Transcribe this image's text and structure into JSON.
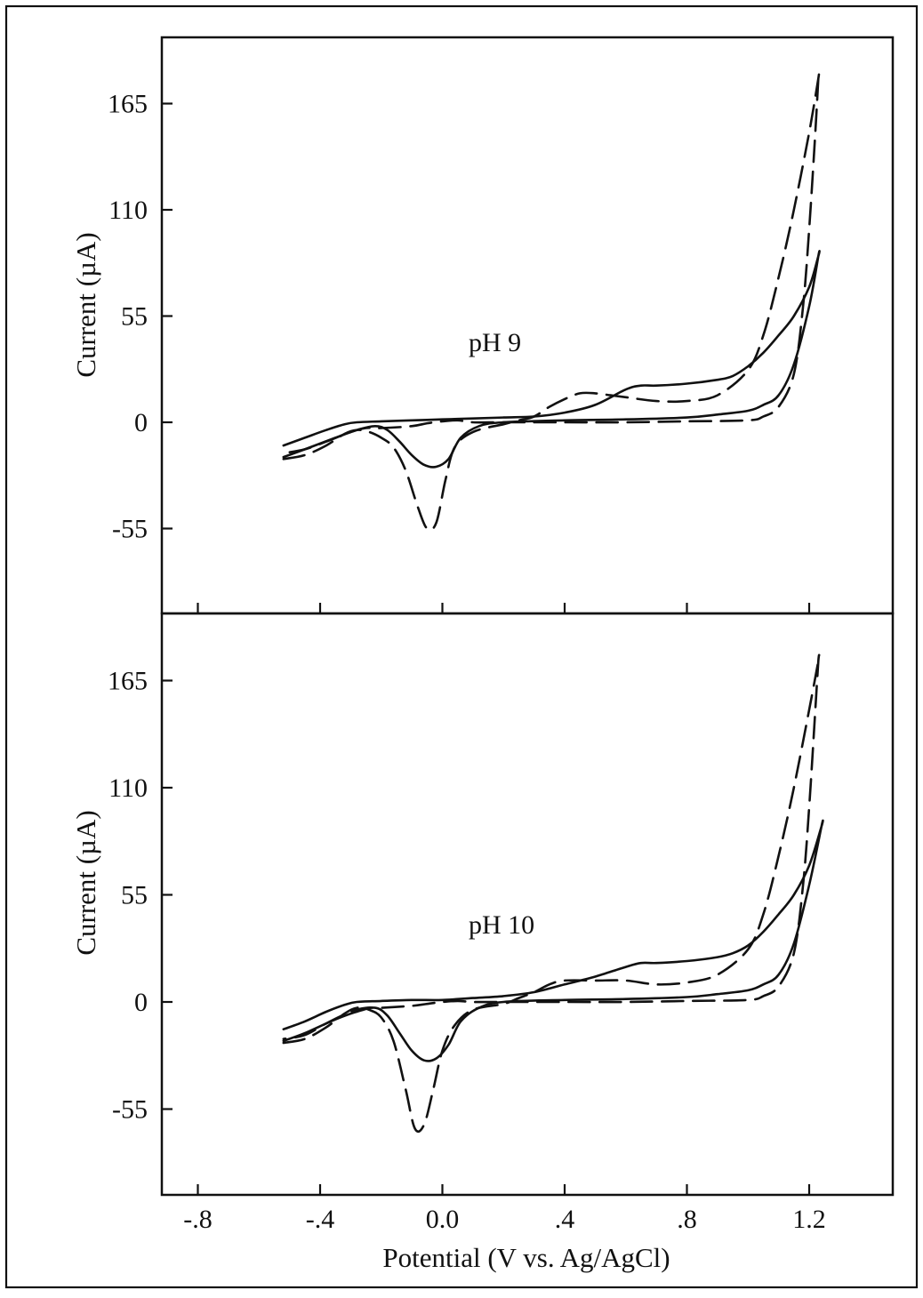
{
  "colors": {
    "line": "#111111",
    "background": "#ffffff"
  },
  "chart_data": [
    {
      "type": "line",
      "panel_label": "pH 9",
      "ylabel": "Current (µA)",
      "xlabel": "",
      "xlim": [
        -0.9,
        1.45
      ],
      "ylim": [
        -98,
        200
      ],
      "yticks": [
        -55,
        0,
        55,
        110,
        165
      ],
      "ytick_labels": [
        "-55",
        "0",
        "55",
        "110",
        "165"
      ],
      "xticks": [
        -0.8,
        -0.4,
        0.0,
        0.4,
        0.8,
        1.2
      ],
      "xtick_labels": [],
      "grid": false,
      "series": [
        {
          "style": "solid",
          "x": [
            -0.52,
            -0.45,
            -0.38,
            -0.32,
            -0.28,
            -0.2,
            -0.1,
            0.0,
            0.1,
            0.2,
            0.3,
            0.4,
            0.5,
            0.6,
            0.65,
            0.7,
            0.8,
            0.9,
            0.95,
            1.0,
            1.05,
            1.1,
            1.15,
            1.2,
            1.23,
            1.23,
            1.2,
            1.15,
            1.1,
            1.05,
            1.0,
            0.9,
            0.8,
            0.6,
            0.4,
            0.2,
            0.12,
            0.06,
            0.02,
            -0.02,
            -0.06,
            -0.1,
            -0.14,
            -0.18,
            -0.22,
            -0.28,
            -0.35,
            -0.45,
            -0.52
          ],
          "y": [
            -12,
            -8,
            -4,
            -1,
            0,
            0.5,
            1,
            1.5,
            2,
            2.5,
            3,
            5,
            9,
            17,
            19,
            19,
            20,
            22,
            24,
            29,
            36,
            45,
            55,
            70,
            86,
            86,
            60,
            30,
            14,
            9,
            6,
            4,
            2.5,
            1.5,
            1,
            0,
            -2,
            -8,
            -19,
            -23,
            -22,
            -17,
            -10,
            -4,
            -2,
            -4,
            -8,
            -14,
            -18
          ]
        },
        {
          "style": "dashed",
          "x": [
            -0.52,
            -0.45,
            -0.38,
            -0.32,
            -0.28,
            -0.24,
            -0.2,
            -0.16,
            -0.12,
            -0.08,
            -0.05,
            -0.02,
            0.01,
            0.04,
            0.1,
            0.2,
            0.25,
            0.3,
            0.35,
            0.4,
            0.45,
            0.5,
            0.55,
            0.6,
            0.7,
            0.8,
            0.9,
            1.0,
            1.05,
            1.1,
            1.15,
            1.2,
            1.23,
            1.23,
            1.22,
            1.2,
            1.18,
            1.15,
            1.1,
            1.05,
            1.0,
            0.8,
            0.6,
            0.4,
            0.2,
            0.1,
            0.05,
            0.0,
            -0.05,
            -0.1,
            -0.2,
            -0.25,
            -0.3,
            -0.38,
            -0.45,
            -0.52
          ],
          "y": [
            -19,
            -17,
            -12,
            -6,
            -4,
            -5,
            -8,
            -13,
            -25,
            -44,
            -55,
            -52,
            -30,
            -13,
            -5,
            -1,
            1,
            3,
            8,
            12,
            15,
            15,
            14,
            13,
            11,
            11,
            14,
            27,
            45,
            75,
            110,
            150,
            178,
            178,
            150,
            100,
            60,
            25,
            8,
            3,
            1,
            0.5,
            0,
            0,
            0,
            0,
            1,
            0.5,
            -0.5,
            -2,
            -3,
            -3,
            -5,
            -10,
            -14,
            -16
          ]
        }
      ]
    },
    {
      "type": "line",
      "panel_label": "pH 10",
      "ylabel": "Current (µA)",
      "xlabel": "Potential (V vs. Ag/AgCl)",
      "xlim": [
        -0.9,
        1.45
      ],
      "ylim": [
        -98,
        200
      ],
      "yticks": [
        -55,
        0,
        55,
        110,
        165
      ],
      "ytick_labels": [
        "-55",
        "0",
        "55",
        "110",
        "165"
      ],
      "xticks": [
        -0.8,
        -0.4,
        0.0,
        0.4,
        0.8,
        1.2
      ],
      "xtick_labels": [
        "-.8",
        "-.4",
        "0.0",
        ".4",
        ".8",
        "1.2"
      ],
      "grid": false,
      "series": [
        {
          "style": "solid",
          "x": [
            -0.52,
            -0.45,
            -0.38,
            -0.32,
            -0.28,
            -0.2,
            -0.1,
            0.0,
            0.1,
            0.2,
            0.3,
            0.4,
            0.5,
            0.6,
            0.65,
            0.7,
            0.8,
            0.9,
            0.95,
            1.0,
            1.05,
            1.1,
            1.15,
            1.2,
            1.24,
            1.24,
            1.2,
            1.15,
            1.1,
            1.05,
            1.0,
            0.9,
            0.8,
            0.6,
            0.4,
            0.2,
            0.12,
            0.06,
            0.02,
            -0.02,
            -0.06,
            -0.1,
            -0.14,
            -0.18,
            -0.22,
            -0.28,
            -0.35,
            -0.45,
            -0.52
          ],
          "y": [
            -14,
            -10,
            -5,
            -1.5,
            0,
            0.5,
            1,
            1,
            2,
            3,
            5,
            9,
            13,
            18,
            20,
            20,
            21,
            23,
            25,
            29,
            36,
            45,
            55,
            70,
            90,
            90,
            60,
            30,
            14,
            9,
            6,
            4,
            2.5,
            1.5,
            1,
            0,
            -3,
            -10,
            -22,
            -29,
            -30,
            -25,
            -16,
            -7,
            -3,
            -5,
            -9,
            -16,
            -20
          ]
        },
        {
          "style": "dashed",
          "x": [
            -0.52,
            -0.45,
            -0.38,
            -0.32,
            -0.28,
            -0.24,
            -0.2,
            -0.16,
            -0.12,
            -0.09,
            -0.06,
            -0.03,
            0.0,
            0.04,
            0.1,
            0.2,
            0.25,
            0.3,
            0.35,
            0.4,
            0.5,
            0.6,
            0.7,
            0.8,
            0.9,
            1.0,
            1.05,
            1.1,
            1.15,
            1.2,
            1.23,
            1.23,
            1.22,
            1.2,
            1.18,
            1.15,
            1.1,
            1.05,
            1.0,
            0.8,
            0.6,
            0.4,
            0.2,
            0.1,
            0.05,
            0.0,
            -0.05,
            -0.1,
            -0.2,
            -0.25,
            -0.3,
            -0.38,
            -0.45,
            -0.52
          ],
          "y": [
            -21,
            -19,
            -13,
            -6,
            -3,
            -4,
            -8,
            -20,
            -45,
            -65,
            -63,
            -45,
            -25,
            -12,
            -4,
            -1,
            2,
            5,
            9,
            11,
            11,
            11,
            9,
            10,
            14,
            27,
            45,
            75,
            110,
            150,
            175,
            175,
            150,
            100,
            60,
            25,
            8,
            3,
            1,
            0.5,
            0,
            0,
            0,
            0,
            0.5,
            0,
            -1,
            -2,
            -3,
            -3,
            -5,
            -11,
            -17,
            -19
          ]
        }
      ]
    }
  ]
}
